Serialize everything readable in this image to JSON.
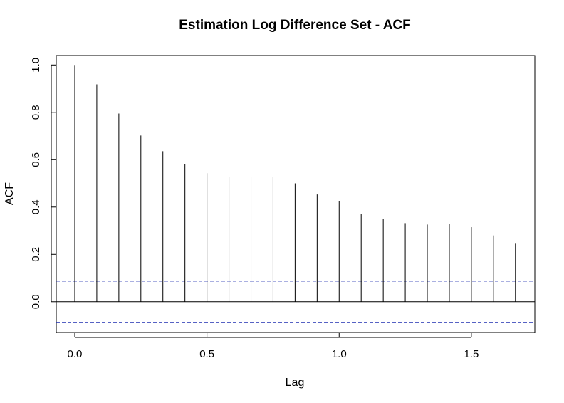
{
  "chart_data": {
    "type": "bar",
    "title": "Estimation Log Difference Set - ACF",
    "xlabel": "Lag",
    "ylabel": "ACF",
    "xlim": [
      -0.07,
      1.74
    ],
    "ylim": [
      -0.13,
      1.04
    ],
    "x_ticks": [
      0.0,
      0.5,
      1.0,
      1.5
    ],
    "x_tick_labels": [
      "0.0",
      "0.5",
      "1.0",
      "1.5"
    ],
    "y_ticks": [
      0.0,
      0.2,
      0.4,
      0.6,
      0.8,
      1.0
    ],
    "y_tick_labels": [
      "0.0",
      "0.2",
      "0.4",
      "0.6",
      "0.8",
      "1.0"
    ],
    "lags": [
      0.0,
      0.0833,
      0.1667,
      0.25,
      0.3333,
      0.4167,
      0.5,
      0.5833,
      0.6667,
      0.75,
      0.8333,
      0.9167,
      1.0,
      1.0833,
      1.1667,
      1.25,
      1.3333,
      1.4167,
      1.5,
      1.5833,
      1.6667
    ],
    "acf": [
      1.0,
      0.918,
      0.795,
      0.702,
      0.636,
      0.582,
      0.543,
      0.528,
      0.528,
      0.528,
      0.5,
      0.453,
      0.424,
      0.372,
      0.349,
      0.332,
      0.326,
      0.328,
      0.315,
      0.28,
      0.248
    ],
    "confidence_bound": 0.087,
    "zero_line": 0,
    "grid": false,
    "legend": "none"
  }
}
